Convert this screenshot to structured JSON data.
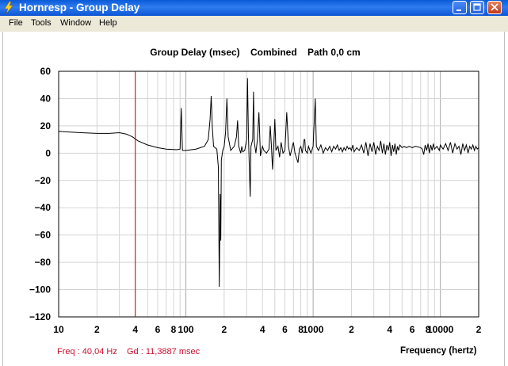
{
  "window": {
    "title": "Hornresp - Group Delay"
  },
  "menu": {
    "items": [
      "File",
      "Tools",
      "Window",
      "Help"
    ]
  },
  "status": {
    "freq": "Freq : 40,04 Hz",
    "gd": "Gd : 11,3887 msec"
  },
  "colors": {
    "titlebar": "#0a5ad8",
    "trace": "#000000",
    "cursor": "#cc0000",
    "readout": "#c8102e",
    "grid": "#c8c8c8"
  },
  "chart_data": {
    "type": "line",
    "title": "Group Delay (msec)    Combined    Path 0,0 cm",
    "xlabel": "Frequency (hertz)",
    "ylabel": "",
    "x_scale": "log",
    "xlim": [
      10,
      20000
    ],
    "ylim": [
      -120,
      60
    ],
    "y_ticks": [
      60,
      40,
      20,
      0,
      -20,
      -40,
      -60,
      -80,
      -100,
      -120
    ],
    "y_tick_labels": [
      "60",
      "40",
      "20",
      "0",
      "−20",
      "−40",
      "−60",
      "−80",
      "−100",
      "−120"
    ],
    "x_ticks": [
      10,
      20,
      40,
      60,
      80,
      100,
      200,
      400,
      600,
      800,
      1000,
      2000,
      4000,
      6000,
      8000,
      10000,
      20000
    ],
    "x_tick_labels": [
      "10",
      "2",
      "4",
      "6",
      "8",
      "100",
      "2",
      "4",
      "6",
      "8",
      "1000",
      "2",
      "4",
      "6",
      "8",
      "10000",
      "2"
    ],
    "cursor_x": 40.04,
    "cursor_y": 11.3887,
    "series": [
      {
        "values": [
          [
            10,
            16
          ],
          [
            12,
            15.5
          ],
          [
            15,
            15
          ],
          [
            20,
            14.5
          ],
          [
            25,
            14.5
          ],
          [
            30,
            15
          ],
          [
            34,
            14
          ],
          [
            38,
            12
          ],
          [
            42,
            9
          ],
          [
            50,
            6
          ],
          [
            60,
            4
          ],
          [
            70,
            3
          ],
          [
            85,
            2.5
          ],
          [
            90,
            3
          ],
          [
            92,
            33
          ],
          [
            94,
            2
          ],
          [
            100,
            2
          ],
          [
            120,
            3
          ],
          [
            140,
            5
          ],
          [
            150,
            10
          ],
          [
            155,
            25
          ],
          [
            158,
            42
          ],
          [
            161,
            20
          ],
          [
            165,
            5
          ],
          [
            175,
            3
          ],
          [
            180,
            -10
          ],
          [
            183,
            -98
          ],
          [
            186,
            -30
          ],
          [
            188,
            -64
          ],
          [
            190,
            -5
          ],
          [
            195,
            2
          ],
          [
            200,
            5
          ],
          [
            205,
            15
          ],
          [
            210,
            40
          ],
          [
            215,
            12
          ],
          [
            225,
            2
          ],
          [
            240,
            5
          ],
          [
            250,
            12
          ],
          [
            255,
            24
          ],
          [
            260,
            5
          ],
          [
            270,
            0
          ],
          [
            275,
            5
          ],
          [
            280,
            1
          ],
          [
            290,
            2
          ],
          [
            300,
            10
          ],
          [
            305,
            55
          ],
          [
            310,
            15
          ],
          [
            315,
            -10
          ],
          [
            320,
            -32
          ],
          [
            325,
            5
          ],
          [
            335,
            10
          ],
          [
            340,
            45
          ],
          [
            345,
            8
          ],
          [
            355,
            0
          ],
          [
            365,
            10
          ],
          [
            375,
            30
          ],
          [
            385,
            -2
          ],
          [
            400,
            5
          ],
          [
            410,
            2
          ],
          [
            430,
            0
          ],
          [
            450,
            3
          ],
          [
            460,
            20
          ],
          [
            470,
            5
          ],
          [
            480,
            -12
          ],
          [
            490,
            5
          ],
          [
            500,
            25
          ],
          [
            510,
            2
          ],
          [
            530,
            5
          ],
          [
            545,
            -3
          ],
          [
            560,
            8
          ],
          [
            580,
            0
          ],
          [
            600,
            2
          ],
          [
            620,
            30
          ],
          [
            640,
            5
          ],
          [
            660,
            -2
          ],
          [
            700,
            8
          ],
          [
            720,
            0
          ],
          [
            760,
            -7
          ],
          [
            780,
            3
          ],
          [
            800,
            5
          ],
          [
            820,
            0
          ],
          [
            850,
            10
          ],
          [
            860,
            10
          ],
          [
            870,
            2
          ],
          [
            900,
            0
          ],
          [
            920,
            5
          ],
          [
            960,
            0
          ],
          [
            1000,
            5
          ],
          [
            1040,
            40
          ],
          [
            1060,
            5
          ],
          [
            1100,
            2
          ],
          [
            1150,
            6
          ],
          [
            1200,
            0
          ],
          [
            1250,
            4
          ],
          [
            1300,
            2
          ],
          [
            1350,
            5
          ],
          [
            1400,
            1
          ],
          [
            1450,
            5
          ],
          [
            1500,
            3
          ],
          [
            1550,
            6
          ],
          [
            1600,
            2
          ],
          [
            1650,
            4
          ],
          [
            1700,
            1
          ],
          [
            1750,
            4
          ],
          [
            1800,
            2
          ],
          [
            1850,
            5
          ],
          [
            1900,
            3
          ],
          [
            1950,
            4
          ],
          [
            2000,
            2
          ],
          [
            2050,
            6
          ],
          [
            2100,
            1
          ],
          [
            2200,
            4
          ],
          [
            2300,
            2
          ],
          [
            2400,
            6
          ],
          [
            2500,
            0
          ],
          [
            2600,
            8
          ],
          [
            2700,
            -2
          ],
          [
            2800,
            7
          ],
          [
            2900,
            1
          ],
          [
            3000,
            8
          ],
          [
            3100,
            -1
          ],
          [
            3200,
            5
          ],
          [
            3300,
            2
          ],
          [
            3400,
            9
          ],
          [
            3500,
            0
          ],
          [
            3600,
            7
          ],
          [
            3700,
            -1
          ],
          [
            3800,
            6
          ],
          [
            3900,
            2
          ],
          [
            4000,
            8
          ],
          [
            4100,
            -2
          ],
          [
            4200,
            6
          ],
          [
            4300,
            1
          ],
          [
            4400,
            7
          ],
          [
            4500,
            -1
          ],
          [
            4600,
            5
          ],
          [
            4700,
            2
          ],
          [
            4800,
            6
          ],
          [
            5000,
            4
          ],
          [
            5200,
            5
          ],
          [
            5400,
            4
          ],
          [
            5700,
            5
          ],
          [
            6000,
            4
          ],
          [
            6400,
            5
          ],
          [
            7000,
            4
          ],
          [
            7200,
            3
          ],
          [
            7400,
            -1
          ],
          [
            7600,
            6
          ],
          [
            7800,
            2
          ],
          [
            8000,
            7
          ],
          [
            8200,
            0
          ],
          [
            8400,
            6
          ],
          [
            8600,
            2
          ],
          [
            8800,
            7
          ],
          [
            9000,
            3
          ],
          [
            9400,
            5
          ],
          [
            9800,
            2
          ],
          [
            10000,
            6
          ],
          [
            10500,
            3
          ],
          [
            11000,
            7
          ],
          [
            11500,
            2
          ],
          [
            12000,
            8
          ],
          [
            12500,
            0
          ],
          [
            13000,
            7
          ],
          [
            13500,
            3
          ],
          [
            14000,
            5
          ],
          [
            14500,
            -1
          ],
          [
            15000,
            7
          ],
          [
            15500,
            2
          ],
          [
            16000,
            6
          ],
          [
            16500,
            0
          ],
          [
            17000,
            5
          ],
          [
            17500,
            3
          ],
          [
            18000,
            6
          ],
          [
            18500,
            2
          ],
          [
            19000,
            5
          ],
          [
            19500,
            3
          ],
          [
            20000,
            4
          ]
        ]
      }
    ]
  }
}
